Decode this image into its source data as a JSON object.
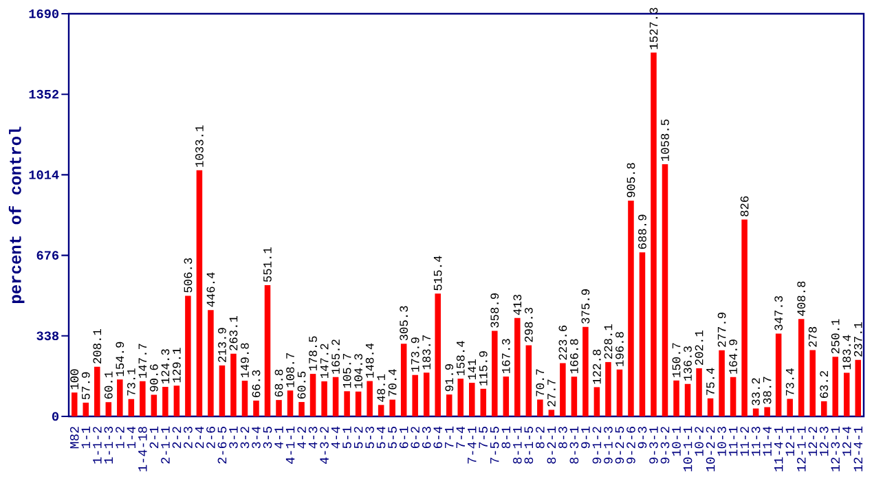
{
  "chart_data": {
    "type": "bar",
    "ylabel": "percent of control",
    "categories": [
      "M82",
      "1-1",
      "1-1-2",
      "1-1-3",
      "1-2",
      "1-4",
      "1-4-18",
      "2-1",
      "2-1-1",
      "2-2",
      "2-3",
      "2-4",
      "2-6",
      "2-6-5",
      "3-1",
      "3-2",
      "3-4",
      "3-5",
      "4-1",
      "4-1-1",
      "4-2",
      "4-3",
      "4-3-2",
      "4-4",
      "5-1",
      "5-2",
      "5-3",
      "5-4",
      "5-5",
      "6-1",
      "6-2",
      "6-3",
      "6-4",
      "7-1",
      "7-4",
      "7-4-1",
      "7-5",
      "7-5-5",
      "8-1",
      "8-1-1",
      "8-1-5",
      "8-2",
      "8-2-1",
      "8-3",
      "8-3-1",
      "9-1",
      "9-1-2",
      "9-1-3",
      "9-2-5",
      "9-2-6",
      "9-3",
      "9-3-1",
      "9-3-2",
      "10-1",
      "10-1-1",
      "10-2",
      "10-2-2",
      "10-3",
      "11-1",
      "11-2",
      "11-3",
      "11-4",
      "11-4-1",
      "12-1",
      "12-1-1",
      "12-2",
      "12-3",
      "12-3-1",
      "12-4",
      "12-4-1"
    ],
    "values": [
      100,
      57.9,
      208.1,
      60.1,
      154.9,
      73.1,
      147.7,
      90.6,
      124.3,
      129.1,
      506.3,
      1033.1,
      446.4,
      213.9,
      263.1,
      149.8,
      66.3,
      551.1,
      68.8,
      108.7,
      60.5,
      178.5,
      147.2,
      165.2,
      105.7,
      104.3,
      148.4,
      48.1,
      70.4,
      305.3,
      173.9,
      183.7,
      515.4,
      91.9,
      158.4,
      141,
      115.9,
      358.9,
      167.3,
      413,
      298.3,
      70.7,
      27.7,
      223.6,
      166.8,
      375.9,
      122.8,
      228.1,
      196.8,
      905.8,
      688.9,
      1527.3,
      1058.5,
      150.7,
      136.3,
      202.1,
      75.4,
      277.9,
      164.9,
      826,
      33.2,
      38.7,
      347.3,
      73.4,
      408.8,
      278,
      63.2,
      250.1,
      183.4,
      237.1
    ],
    "color": "#ff0000",
    "ylim": [
      0,
      1690
    ],
    "yticks": [
      0,
      338,
      676,
      1014,
      1352,
      1690
    ],
    "data_labels": true
  }
}
